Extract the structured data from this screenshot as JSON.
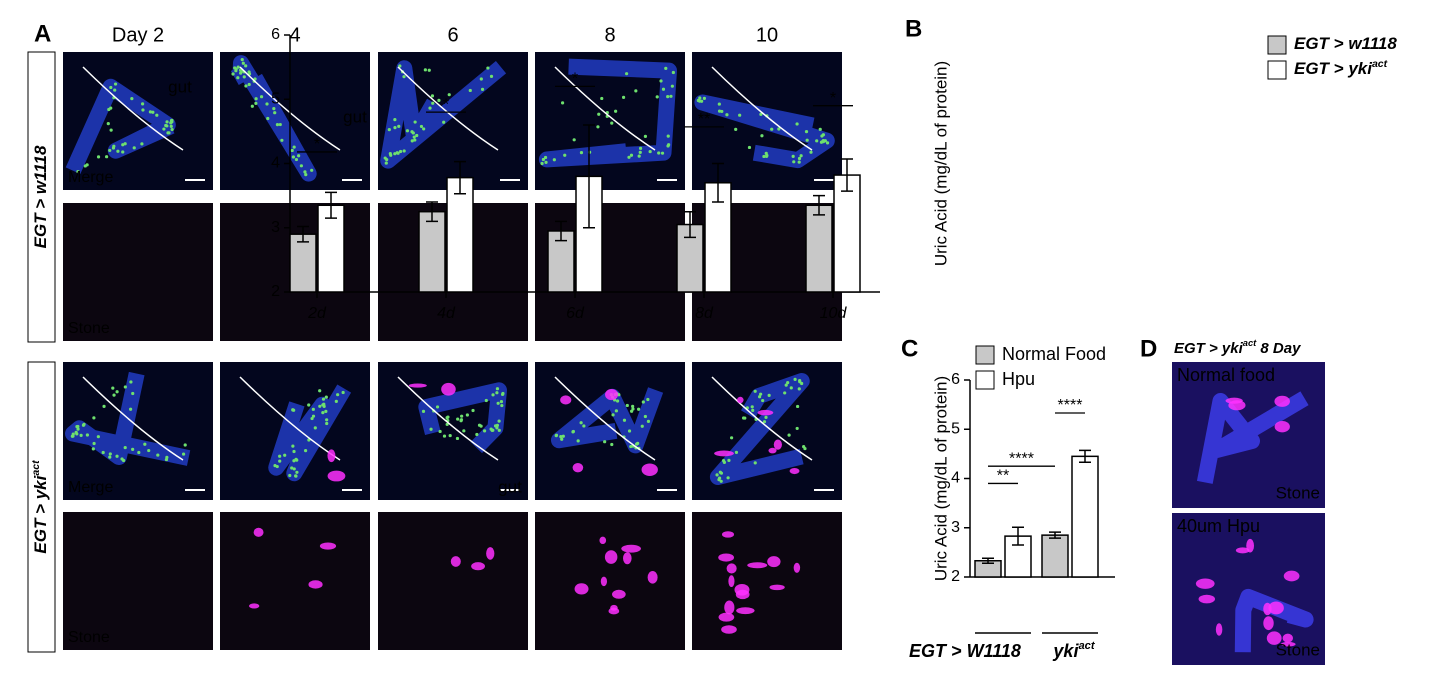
{
  "panel_a": {
    "letter": "A",
    "columns": [
      "Day 2",
      "4",
      "6",
      "8",
      "10"
    ],
    "row_labels": [
      {
        "text": "EGT > w1118"
      },
      {
        "text": "EGT > yki",
        "superscript": "act"
      }
    ],
    "channel_labels": [
      "Merge",
      "Stone",
      "Merge",
      "Stone"
    ],
    "gut_labels": [
      "gut",
      "gut",
      "gut"
    ]
  },
  "chart_data": [
    {
      "type": "bar",
      "letter": "B",
      "ylabel": "Uric Acid  (mg/dL of protein)",
      "categories": [
        "2d",
        "4d",
        "6d",
        "8d",
        "10d"
      ],
      "series": [
        {
          "name": "EGT > w1118",
          "color": "#c8c8c8",
          "values": [
            2.9,
            3.25,
            2.95,
            3.05,
            3.35
          ],
          "errors": [
            0.12,
            0.15,
            0.15,
            0.2,
            0.15
          ]
        },
        {
          "name": "EGT > yki",
          "name_superscript": "act",
          "color": "#ffffff",
          "values": [
            3.35,
            3.78,
            3.8,
            3.7,
            3.82
          ],
          "errors": [
            0.2,
            0.25,
            0.8,
            0.3,
            0.25
          ]
        }
      ],
      "annotations": [
        {
          "text": "*"
        },
        {
          "text": "*"
        },
        {
          "text": "*"
        },
        {
          "text": "**"
        },
        {
          "text": "*"
        }
      ],
      "ylim": [
        2,
        6
      ],
      "yticks": [
        2,
        3,
        4,
        5,
        6
      ]
    },
    {
      "type": "bar",
      "letter": "C",
      "ylabel": "Uric Acid  (mg/dL of protein)",
      "categories": [
        "EGT > W1118",
        "yki"
      ],
      "category_superscripts": [
        "act"
      ],
      "series": [
        {
          "name": "Normal Food",
          "color": "#c8c8c8",
          "values": [
            2.33,
            2.85
          ],
          "errors": [
            0.05,
            0.06
          ]
        },
        {
          "name": "Hpu",
          "color": "#ffffff",
          "values": [
            2.83,
            4.45
          ],
          "errors": [
            0.18,
            0.12
          ]
        }
      ],
      "annotations": [
        {
          "text": "**"
        },
        {
          "text": "****"
        },
        {
          "text": "****"
        }
      ],
      "ylim": [
        2,
        6
      ],
      "yticks": [
        2,
        3,
        4,
        5,
        6
      ]
    }
  ],
  "panel_d": {
    "letter": "D",
    "title": {
      "text": "EGT > yki",
      "superscript": "act",
      "suffix": " 8 Day"
    },
    "images": [
      {
        "label": "Normal food",
        "channel": "Stone"
      },
      {
        "label": "40um Hpu",
        "channel": "Stone"
      }
    ]
  }
}
